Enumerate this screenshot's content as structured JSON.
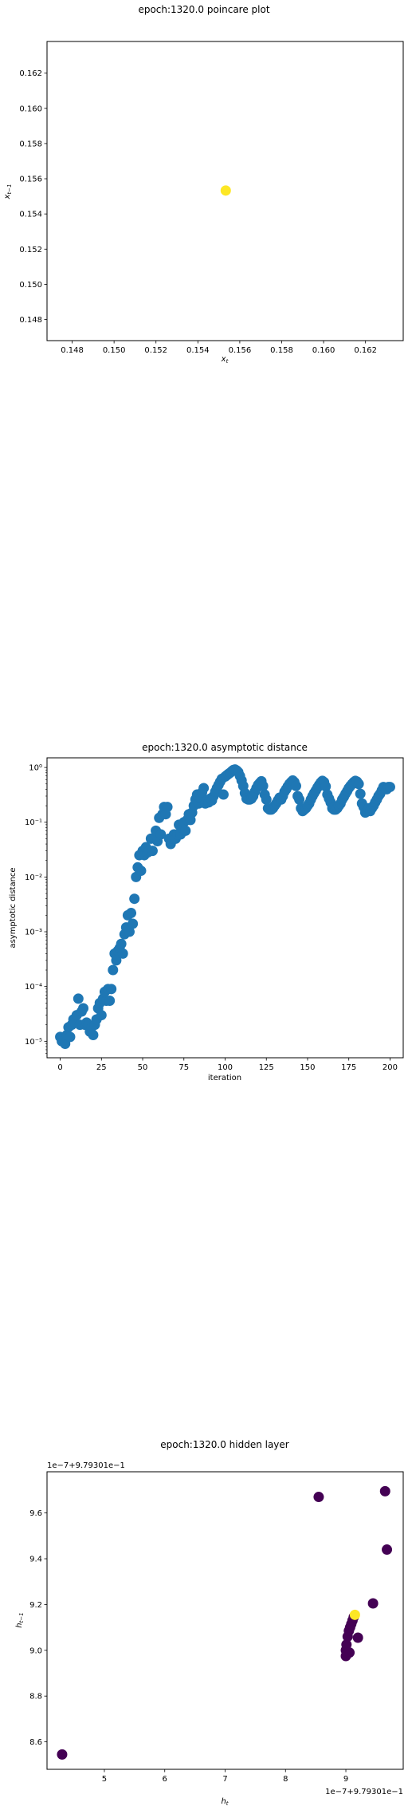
{
  "chart_data": [
    {
      "type": "scatter",
      "title": "epoch:1320.0 poincare plot",
      "xlabel": "x_t",
      "ylabel": "x_{t-1}",
      "xlim": [
        0.1468,
        0.1638
      ],
      "ylim": [
        0.1468,
        0.1638
      ],
      "xticks": [
        0.148,
        0.15,
        0.152,
        0.154,
        0.156,
        0.158,
        0.16,
        0.162
      ],
      "yticks": [
        0.148,
        0.15,
        0.152,
        0.154,
        0.156,
        0.158,
        0.16,
        0.162
      ],
      "xtick_labels": [
        "0.148",
        "0.150",
        "0.152",
        "0.154",
        "0.156",
        "0.158",
        "0.160",
        "0.162"
      ],
      "ytick_labels": [
        "0.148",
        "0.150",
        "0.152",
        "0.154",
        "0.156",
        "0.158",
        "0.160",
        "0.162"
      ],
      "points": [
        {
          "x": 0.15533,
          "y": 0.15533,
          "color": "#fde725"
        }
      ],
      "grid": false
    },
    {
      "type": "scatter",
      "title": "epoch:1320.0 asymptotic distance",
      "xlabel": "iteration",
      "ylabel": "asymptotic distance",
      "yscale": "log",
      "xlim": [
        -8,
        208
      ],
      "ylim": [
        5e-06,
        1.5
      ],
      "xticks": [
        0,
        25,
        50,
        75,
        100,
        125,
        150,
        175,
        200
      ],
      "xtick_labels": [
        "0",
        "25",
        "50",
        "75",
        "100",
        "125",
        "150",
        "175",
        "200"
      ],
      "yticks": [
        1e-05,
        0.0001,
        0.001,
        0.01,
        0.1,
        1
      ],
      "ytick_labels": [
        "10⁻⁵",
        "10⁻⁴",
        "10⁻³",
        "10⁻²",
        "10⁻¹",
        "10⁰"
      ],
      "color": "#1f77b4",
      "grid": false,
      "values": [
        1.2e-05,
        1e-05,
        1.1e-05,
        9e-06,
        1.3e-05,
        1.8e-05,
        1.2e-05,
        2e-05,
        2.5e-05,
        2.2e-05,
        3e-05,
        6e-05,
        2e-05,
        3.5e-05,
        4e-05,
        2e-05,
        2.2e-05,
        2e-05,
        1.5e-05,
        1.8e-05,
        1.3e-05,
        2e-05,
        2.5e-05,
        4e-05,
        5e-05,
        3e-05,
        6e-05,
        8e-05,
        5.5e-05,
        9e-05,
        5.5e-05,
        9e-05,
        0.0002,
        0.0004,
        0.0003,
        0.00045,
        0.0005,
        0.0006,
        0.0004,
        0.0009,
        0.0012,
        0.002,
        0.001,
        0.0022,
        0.0014,
        0.004,
        0.01,
        0.015,
        0.025,
        0.013,
        0.03,
        0.025,
        0.035,
        0.028,
        0.03,
        0.05,
        0.03,
        0.05,
        0.07,
        0.045,
        0.12,
        0.06,
        0.14,
        0.19,
        0.14,
        0.19,
        0.05,
        0.04,
        0.05,
        0.06,
        0.05,
        0.06,
        0.09,
        0.06,
        0.08,
        0.1,
        0.07,
        0.11,
        0.14,
        0.11,
        0.15,
        0.2,
        0.26,
        0.32,
        0.22,
        0.28,
        0.35,
        0.42,
        0.22,
        0.25,
        0.23,
        0.27,
        0.25,
        0.3,
        0.36,
        0.42,
        0.48,
        0.55,
        0.62,
        0.32,
        0.68,
        0.72,
        0.76,
        0.8,
        0.85,
        0.9,
        0.92,
        0.88,
        0.82,
        0.7,
        0.58,
        0.46,
        0.34,
        0.27,
        0.26,
        0.26,
        0.27,
        0.3,
        0.36,
        0.42,
        0.48,
        0.52,
        0.56,
        0.46,
        0.32,
        0.26,
        0.18,
        0.17,
        0.17,
        0.18,
        0.2,
        0.22,
        0.25,
        0.28,
        0.26,
        0.3,
        0.36,
        0.4,
        0.45,
        0.5,
        0.54,
        0.58,
        0.54,
        0.46,
        0.3,
        0.26,
        0.18,
        0.16,
        0.17,
        0.18,
        0.2,
        0.22,
        0.26,
        0.3,
        0.34,
        0.38,
        0.43,
        0.48,
        0.53,
        0.57,
        0.54,
        0.45,
        0.32,
        0.27,
        0.23,
        0.18,
        0.17,
        0.17,
        0.18,
        0.2,
        0.22,
        0.26,
        0.29,
        0.33,
        0.37,
        0.42,
        0.46,
        0.5,
        0.54,
        0.57,
        0.55,
        0.5,
        0.33,
        0.22,
        0.19,
        0.15,
        0.16,
        0.18,
        0.16,
        0.18,
        0.2,
        0.23,
        0.26,
        0.3,
        0.33,
        0.38,
        0.44,
        0.42,
        0.4,
        0.44,
        0.44
      ]
    },
    {
      "type": "scatter",
      "title": "epoch:1320.0 hidden layer",
      "xlabel": "h_t",
      "ylabel": "h_{t-1}",
      "x_offset_label": "1e−7+9.79301e−1",
      "y_offset_label": "1e−7+9.79301e−1",
      "xlim": [
        4.05,
        9.95
      ],
      "ylim": [
        8.48,
        9.78
      ],
      "xticks": [
        5,
        6,
        7,
        8,
        9
      ],
      "xtick_labels": [
        "5",
        "6",
        "7",
        "8",
        "9"
      ],
      "yticks": [
        8.6,
        8.8,
        9.0,
        9.2,
        9.4,
        9.6
      ],
      "ytick_labels": [
        "8.6",
        "8.8",
        "9.0",
        "9.2",
        "9.4",
        "9.6"
      ],
      "grid": false,
      "points": [
        {
          "x": 4.3,
          "y": 8.545,
          "color": "#440154"
        },
        {
          "x": 8.55,
          "y": 9.67,
          "color": "#440154"
        },
        {
          "x": 9.65,
          "y": 9.695,
          "color": "#440154"
        },
        {
          "x": 9.68,
          "y": 9.44,
          "color": "#440154"
        },
        {
          "x": 9.45,
          "y": 9.205,
          "color": "#440154"
        },
        {
          "x": 9.2,
          "y": 9.055,
          "color": "#440154"
        },
        {
          "x": 9.0,
          "y": 8.975,
          "color": "#440154"
        },
        {
          "x": 9.03,
          "y": 8.99,
          "color": "#440154"
        },
        {
          "x": 9.06,
          "y": 8.99,
          "color": "#440154"
        },
        {
          "x": 9.0,
          "y": 9.0,
          "color": "#440154"
        },
        {
          "x": 9.01,
          "y": 9.025,
          "color": "#440154"
        },
        {
          "x": 9.03,
          "y": 9.06,
          "color": "#440154"
        },
        {
          "x": 9.05,
          "y": 9.085,
          "color": "#440154"
        },
        {
          "x": 9.07,
          "y": 9.1,
          "color": "#440154"
        },
        {
          "x": 9.09,
          "y": 9.115,
          "color": "#440154"
        },
        {
          "x": 9.11,
          "y": 9.13,
          "color": "#440154"
        },
        {
          "x": 9.13,
          "y": 9.145,
          "color": "#440154"
        },
        {
          "x": 9.15,
          "y": 9.155,
          "color": "#fde725"
        }
      ]
    }
  ]
}
